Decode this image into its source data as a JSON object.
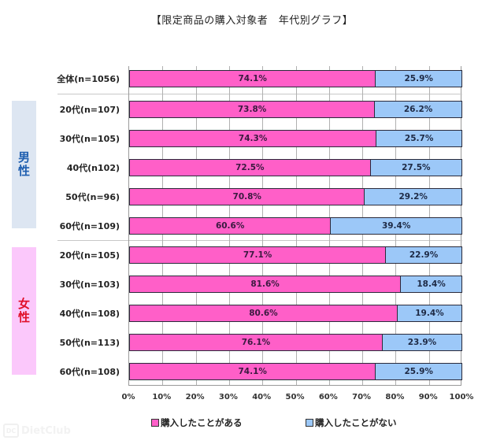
{
  "title": "【限定商品の購入対象者　年代別グラフ】",
  "groups": {
    "male": {
      "label": "男\n性",
      "color": "#1f5fb0",
      "bg": "#dde6f2"
    },
    "female": {
      "label": "女\n性",
      "color": "#e0102a",
      "bg": "#fbc8fb"
    }
  },
  "rows": [
    {
      "label": "全体(n=1056)",
      "yes": "74.1%",
      "no": "25.9%"
    },
    {
      "label": "20代(n=107)",
      "yes": "73.8%",
      "no": "26.2%"
    },
    {
      "label": "30代(n=105)",
      "yes": "74.3%",
      "no": "25.7%"
    },
    {
      "label": "40代(n102)",
      "yes": "72.5%",
      "no": "27.5%"
    },
    {
      "label": "50代(n=96)",
      "yes": "70.8%",
      "no": "29.2%"
    },
    {
      "label": "60代(n=109)",
      "yes": "60.6%",
      "no": "39.4%"
    },
    {
      "label": "20代(n=105)",
      "yes": "77.1%",
      "no": "22.9%"
    },
    {
      "label": "30代(n=103)",
      "yes": "81.6%",
      "no": "18.4%"
    },
    {
      "label": "40代(n=108)",
      "yes": "80.6%",
      "no": "19.4%"
    },
    {
      "label": "50代(n=113)",
      "yes": "76.1%",
      "no": "23.9%"
    },
    {
      "label": "60代(n=108)",
      "yes": "74.1%",
      "no": "25.9%"
    }
  ],
  "ticks": [
    "0%",
    "10%",
    "20%",
    "30%",
    "40%",
    "50%",
    "60%",
    "70%",
    "80%",
    "90%",
    "100%"
  ],
  "legend": {
    "yes": {
      "label": "購入したことがある",
      "color": "#ff5fc8"
    },
    "no": {
      "label": "購入したことがない",
      "color": "#9cc8f8"
    }
  },
  "watermark": {
    "icon": "DC",
    "text": "DietClub"
  },
  "chart_data": {
    "type": "bar",
    "orientation": "horizontal",
    "stacked": true,
    "title": "【限定商品の購入対象者　年代別グラフ】",
    "categories": [
      "全体(n=1056)",
      "男性 20代(n=107)",
      "男性 30代(n=105)",
      "男性 40代(n102)",
      "男性 50代(n=96)",
      "男性 60代(n=109)",
      "女性 20代(n=105)",
      "女性 30代(n=103)",
      "女性 40代(n=108)",
      "女性 50代(n=113)",
      "女性 60代(n=108)"
    ],
    "series": [
      {
        "name": "購入したことがある",
        "color": "#ff5fc8",
        "values": [
          74.1,
          73.8,
          74.3,
          72.5,
          70.8,
          60.6,
          77.1,
          81.6,
          80.6,
          76.1,
          74.1
        ]
      },
      {
        "name": "購入したことがない",
        "color": "#9cc8f8",
        "values": [
          25.9,
          26.2,
          25.7,
          27.5,
          29.2,
          39.4,
          22.9,
          18.4,
          19.4,
          23.9,
          25.9
        ]
      }
    ],
    "xlabel": "",
    "ylabel": "",
    "xlim": [
      0,
      100
    ],
    "xticks": [
      "0%",
      "10%",
      "20%",
      "30%",
      "40%",
      "50%",
      "60%",
      "70%",
      "80%",
      "90%",
      "100%"
    ],
    "grid": true,
    "legend_position": "bottom",
    "group_labels": [
      {
        "label": "男性",
        "rows": [
          1,
          5
        ]
      },
      {
        "label": "女性",
        "rows": [
          6,
          10
        ]
      }
    ]
  }
}
